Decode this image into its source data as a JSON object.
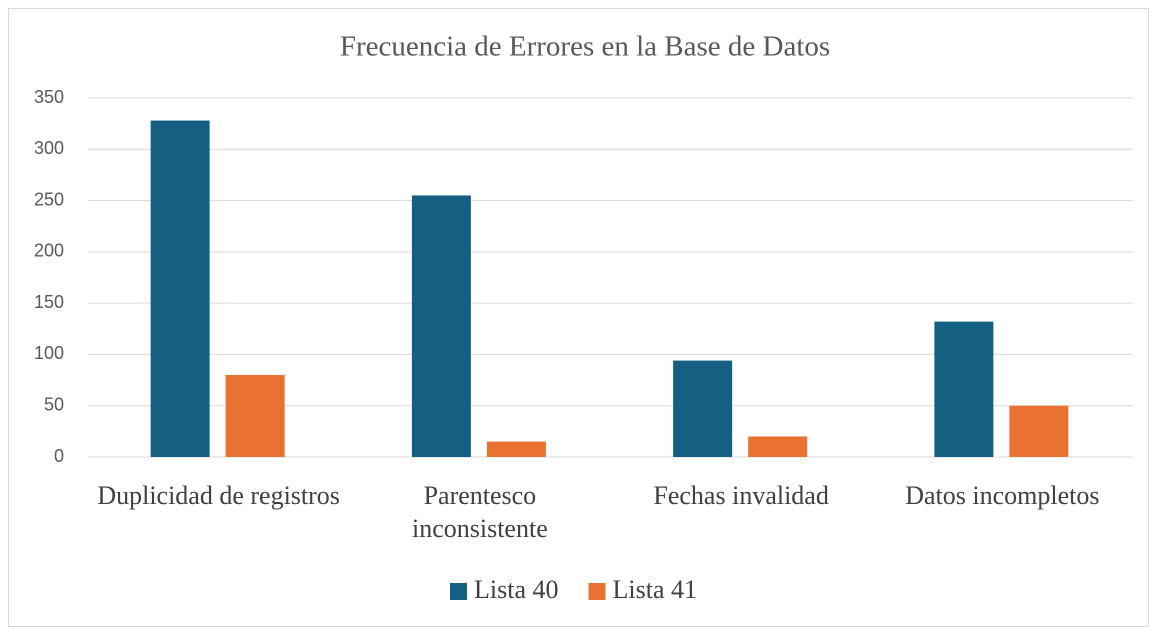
{
  "chart_data": {
    "type": "bar",
    "title": "Frecuencia de Errores en la Base de Datos",
    "categories": [
      "Duplicidad de registros",
      "Parentesco inconsistente",
      "Fechas invalidad",
      "Datos incompletos"
    ],
    "series": [
      {
        "name": "Lista 40",
        "color": "#156082",
        "values": [
          328,
          255,
          94,
          132
        ]
      },
      {
        "name": "Lista 41",
        "color": "#E97132",
        "values": [
          80,
          15,
          20,
          50
        ]
      }
    ],
    "ylim": [
      0,
      350
    ],
    "yticks": [
      0,
      50,
      100,
      150,
      200,
      250,
      300,
      350
    ],
    "grid": true,
    "legend": "bottom"
  }
}
